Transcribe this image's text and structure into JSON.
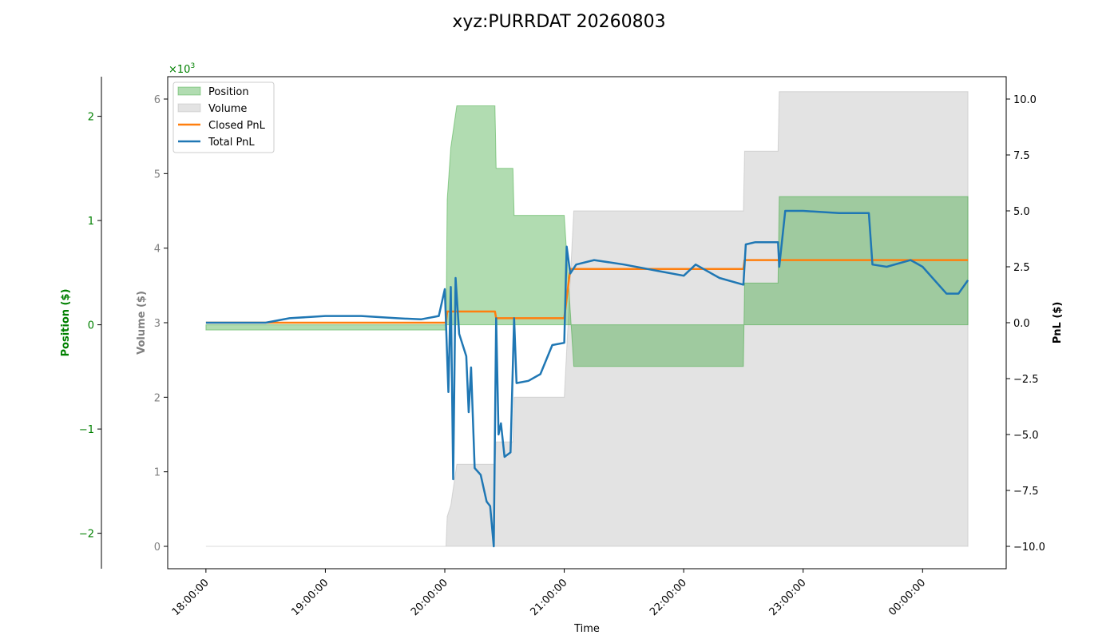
{
  "chart_data": {
    "type": "line",
    "title": "xyz:PURRDAT 20260803",
    "xlabel": "Time",
    "x_ticks": [
      "18:00:00",
      "19:00:00",
      "20:00:00",
      "21:00:00",
      "22:00:00",
      "23:00:00",
      "00:00:00"
    ],
    "x_range_hours": [
      17.68,
      24.7
    ],
    "axes": {
      "position": {
        "label": "Position ($)",
        "color": "#008000",
        "range": [
          -2.34,
          2.38
        ],
        "ticks": [
          -2,
          -1,
          0,
          1,
          2
        ],
        "tick_labels": [
          "−2",
          "−1",
          "0",
          "1",
          "2"
        ],
        "offset_label": "×10",
        "offset_exponent": "3"
      },
      "volume": {
        "label": "Volume ($)",
        "color": "#808080",
        "range": [
          -300,
          6300
        ],
        "ticks": [
          0,
          1,
          2,
          3,
          4,
          5,
          6
        ],
        "tick_labels": [
          "0",
          "1",
          "2",
          "3",
          "4",
          "5",
          "6"
        ]
      },
      "pnl": {
        "label": "PnL ($)",
        "color": "#000000",
        "range": [
          -11,
          11
        ],
        "ticks": [
          -10,
          -7.5,
          -5,
          -2.5,
          0,
          2.5,
          5,
          7.5,
          10
        ],
        "tick_labels": [
          "−10.0",
          "−7.5",
          "−5.0",
          "−2.5",
          "0.0",
          "2.5",
          "5.0",
          "7.5",
          "10.0"
        ]
      }
    },
    "legend": {
      "placement": "top-left",
      "entries": [
        "Position",
        "Volume",
        "Closed PnL",
        "Total PnL"
      ]
    },
    "colors": {
      "position_fill": "#2ca02c",
      "volume_fill": "#b0b0b0",
      "closed_pnl": "#ff7f0e",
      "total_pnl": "#1f77b4"
    },
    "series": [
      {
        "name": "Position",
        "axis": "position",
        "style": "step-area",
        "points": [
          [
            18.0,
            -0.05
          ],
          [
            20.01,
            -0.05
          ],
          [
            20.02,
            1.2
          ],
          [
            20.05,
            1.7
          ],
          [
            20.1,
            2.1
          ],
          [
            20.42,
            2.1
          ],
          [
            20.43,
            1.5
          ],
          [
            20.57,
            1.5
          ],
          [
            20.58,
            1.05
          ],
          [
            21.0,
            1.05
          ],
          [
            21.08,
            -0.4
          ],
          [
            22.5,
            -0.4
          ],
          [
            22.51,
            0.4
          ],
          [
            22.79,
            0.4
          ],
          [
            22.8,
            1.23
          ],
          [
            24.38,
            1.23
          ]
        ]
      },
      {
        "name": "Volume",
        "axis": "volume",
        "style": "step-area",
        "points": [
          [
            18.0,
            0
          ],
          [
            20.01,
            0
          ],
          [
            20.02,
            400
          ],
          [
            20.05,
            550
          ],
          [
            20.1,
            1100
          ],
          [
            20.42,
            1100
          ],
          [
            20.43,
            1400
          ],
          [
            20.57,
            1400
          ],
          [
            20.58,
            2000
          ],
          [
            21.0,
            2000
          ],
          [
            21.08,
            4500
          ],
          [
            22.5,
            4500
          ],
          [
            22.51,
            5300
          ],
          [
            22.79,
            5300
          ],
          [
            22.8,
            6100
          ],
          [
            24.38,
            6100
          ]
        ]
      },
      {
        "name": "Closed PnL",
        "axis": "pnl",
        "style": "step-line",
        "points": [
          [
            18.0,
            0.0
          ],
          [
            20.01,
            0.0
          ],
          [
            20.02,
            0.5
          ],
          [
            20.42,
            0.5
          ],
          [
            20.43,
            0.2
          ],
          [
            21.0,
            0.2
          ],
          [
            21.05,
            2.4
          ],
          [
            22.5,
            2.4
          ],
          [
            22.51,
            2.8
          ],
          [
            24.38,
            2.8
          ]
        ]
      },
      {
        "name": "Total PnL",
        "axis": "pnl",
        "style": "line",
        "points": [
          [
            18.0,
            0.0
          ],
          [
            18.5,
            0.0
          ],
          [
            18.7,
            0.2
          ],
          [
            19.0,
            0.3
          ],
          [
            19.3,
            0.3
          ],
          [
            19.6,
            0.2
          ],
          [
            19.8,
            0.15
          ],
          [
            19.95,
            0.3
          ],
          [
            20.0,
            1.5
          ],
          [
            20.03,
            -3.1
          ],
          [
            20.05,
            1.6
          ],
          [
            20.07,
            -7.0
          ],
          [
            20.09,
            2.0
          ],
          [
            20.12,
            -0.5
          ],
          [
            20.18,
            -1.5
          ],
          [
            20.2,
            -4.0
          ],
          [
            20.22,
            -2.0
          ],
          [
            20.25,
            -6.5
          ],
          [
            20.3,
            -6.8
          ],
          [
            20.35,
            -8.0
          ],
          [
            20.38,
            -8.2
          ],
          [
            20.41,
            -10.0
          ],
          [
            20.43,
            0.2
          ],
          [
            20.45,
            -5.0
          ],
          [
            20.47,
            -4.5
          ],
          [
            20.5,
            -6.0
          ],
          [
            20.55,
            -5.8
          ],
          [
            20.58,
            0.2
          ],
          [
            20.6,
            -2.7
          ],
          [
            20.7,
            -2.6
          ],
          [
            20.8,
            -2.3
          ],
          [
            20.9,
            -1.0
          ],
          [
            21.0,
            -0.9
          ],
          [
            21.02,
            3.4
          ],
          [
            21.05,
            2.2
          ],
          [
            21.1,
            2.6
          ],
          [
            21.25,
            2.8
          ],
          [
            21.5,
            2.6
          ],
          [
            21.8,
            2.3
          ],
          [
            22.0,
            2.1
          ],
          [
            22.1,
            2.6
          ],
          [
            22.3,
            2.0
          ],
          [
            22.5,
            1.7
          ],
          [
            22.52,
            3.5
          ],
          [
            22.6,
            3.6
          ],
          [
            22.79,
            3.6
          ],
          [
            22.8,
            2.5
          ],
          [
            22.85,
            5.0
          ],
          [
            23.0,
            5.0
          ],
          [
            23.3,
            4.9
          ],
          [
            23.55,
            4.9
          ],
          [
            23.58,
            2.6
          ],
          [
            23.7,
            2.5
          ],
          [
            23.9,
            2.8
          ],
          [
            24.0,
            2.5
          ],
          [
            24.2,
            1.3
          ],
          [
            24.3,
            1.3
          ],
          [
            24.38,
            1.9
          ]
        ]
      }
    ]
  }
}
